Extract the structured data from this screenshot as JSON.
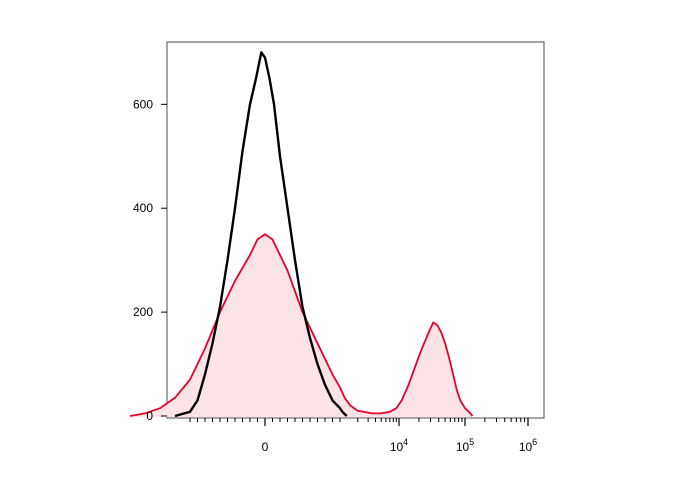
{
  "chart_data": {
    "type": "area",
    "title": "",
    "xlabel": "",
    "ylabel": "",
    "x_scale": "biexponential",
    "ylim": [
      0,
      720
    ],
    "y_ticks": [
      0,
      200,
      400,
      600
    ],
    "y_tick_labels": [
      "0",
      "200",
      "400",
      "600"
    ],
    "x_ticks": [
      0,
      10000,
      100000,
      1000000
    ],
    "x_tick_labels": [
      {
        "base": "0",
        "exp": ""
      },
      {
        "base": "10",
        "exp": "4"
      },
      {
        "base": "10",
        "exp": "5"
      },
      {
        "base": "10",
        "exp": "6"
      }
    ],
    "grid": false,
    "legend": "none",
    "colors": {
      "control": "#000000",
      "stained": "#e8002a",
      "stained_fill": "#fce4e6"
    },
    "series": [
      {
        "style": "line",
        "color": "#000000",
        "points": [
          [
            -1200,
            0
          ],
          [
            -1000,
            8
          ],
          [
            -900,
            30
          ],
          [
            -800,
            80
          ],
          [
            -700,
            140
          ],
          [
            -600,
            210
          ],
          [
            -500,
            300
          ],
          [
            -400,
            400
          ],
          [
            -300,
            510
          ],
          [
            -200,
            600
          ],
          [
            -120,
            650
          ],
          [
            -50,
            700
          ],
          [
            0,
            690
          ],
          [
            60,
            650
          ],
          [
            120,
            600
          ],
          [
            200,
            500
          ],
          [
            300,
            400
          ],
          [
            400,
            300
          ],
          [
            500,
            210
          ],
          [
            600,
            150
          ],
          [
            700,
            100
          ],
          [
            800,
            60
          ],
          [
            900,
            30
          ],
          [
            1000,
            15
          ],
          [
            1100,
            8
          ],
          [
            1300,
            0
          ]
        ]
      },
      {
        "style": "filled-line",
        "color": "#e8002a",
        "fill": "#fce4e6",
        "points": [
          [
            -1800,
            0
          ],
          [
            -1600,
            5
          ],
          [
            -1400,
            15
          ],
          [
            -1200,
            35
          ],
          [
            -1000,
            70
          ],
          [
            -800,
            130
          ],
          [
            -600,
            200
          ],
          [
            -400,
            260
          ],
          [
            -200,
            310
          ],
          [
            -100,
            340
          ],
          [
            0,
            350
          ],
          [
            100,
            340
          ],
          [
            200,
            310
          ],
          [
            300,
            280
          ],
          [
            400,
            240
          ],
          [
            500,
            200
          ],
          [
            600,
            170
          ],
          [
            700,
            140
          ],
          [
            800,
            110
          ],
          [
            900,
            80
          ],
          [
            1000,
            55
          ],
          [
            1200,
            35
          ],
          [
            1500,
            20
          ],
          [
            2000,
            10
          ],
          [
            2500,
            8
          ],
          [
            3500,
            5
          ],
          [
            5000,
            5
          ],
          [
            7000,
            8
          ],
          [
            9000,
            15
          ],
          [
            11000,
            30
          ],
          [
            14000,
            60
          ],
          [
            17000,
            90
          ],
          [
            20000,
            115
          ],
          [
            24000,
            140
          ],
          [
            28000,
            160
          ],
          [
            33000,
            180
          ],
          [
            38000,
            175
          ],
          [
            44000,
            160
          ],
          [
            50000,
            140
          ],
          [
            58000,
            110
          ],
          [
            66000,
            80
          ],
          [
            75000,
            50
          ],
          [
            85000,
            30
          ],
          [
            100000,
            15
          ],
          [
            115000,
            8
          ],
          [
            130000,
            0
          ]
        ]
      }
    ]
  }
}
